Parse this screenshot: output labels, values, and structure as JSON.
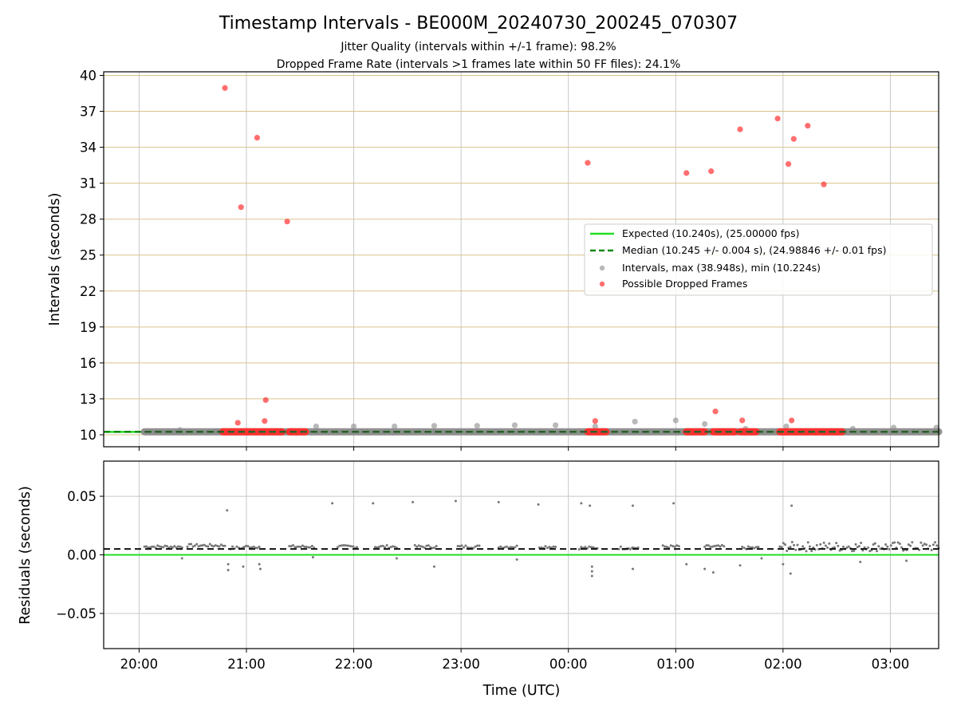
{
  "figure": {
    "title": "Timestamp Intervals - BE000M_20240730_200245_070307",
    "subtitle_1": "Jitter Quality (intervals within +/-1 frame): 98.2%",
    "subtitle_2": "Dropped Frame Rate (intervals >1 frames late within 50 FF files): 24.1%"
  },
  "colors": {
    "expected": "#22dd22",
    "median": "#118811",
    "intervals": "#8a8a8a",
    "dropped": "#ff3030",
    "residual_points": "#777777",
    "y_grid_top": "#d8c38a",
    "x_grid": "#c8c8c8"
  },
  "chart_data": [
    {
      "type": "scatter",
      "ylabel": "Intervals (seconds)",
      "ylim": [
        9.0,
        40.3
      ],
      "yticks": [
        10,
        13,
        16,
        19,
        22,
        25,
        28,
        31,
        34,
        37,
        40
      ],
      "ytick_labels": [
        "10",
        "13",
        "16",
        "19",
        "22",
        "25",
        "28",
        "31",
        "34",
        "37",
        "40"
      ],
      "x_axis_hours": [
        19.67,
        27.45
      ],
      "xticks": [
        20,
        21,
        22,
        23,
        24,
        25,
        26,
        27
      ],
      "grid": true,
      "legend_position": "center-right",
      "legend": [
        "Expected (10.240s), (25.00000 fps)",
        "Median (10.245 +/- 0.004 s), (24.98846 +/- 0.01 fps)",
        "Intervals, max (38.948s), min (10.224s)",
        "Possible Dropped Frames"
      ],
      "expected_interval": 10.24,
      "median_interval": 10.245,
      "interval_band": {
        "x": [
          20.05,
          27.45
        ],
        "y": 10.25
      },
      "intervals_gray": [
        {
          "x": 20.38,
          "y": 10.4
        },
        {
          "x": 20.72,
          "y": 10.3
        },
        {
          "x": 21.65,
          "y": 10.7
        },
        {
          "x": 22.0,
          "y": 10.7
        },
        {
          "x": 22.38,
          "y": 10.7
        },
        {
          "x": 22.75,
          "y": 10.75
        },
        {
          "x": 23.15,
          "y": 10.75
        },
        {
          "x": 23.5,
          "y": 10.8
        },
        {
          "x": 23.88,
          "y": 10.8
        },
        {
          "x": 24.25,
          "y": 10.7
        },
        {
          "x": 24.62,
          "y": 11.1
        },
        {
          "x": 25.0,
          "y": 11.2
        },
        {
          "x": 25.27,
          "y": 10.9
        },
        {
          "x": 25.65,
          "y": 10.5
        },
        {
          "x": 26.03,
          "y": 10.7
        },
        {
          "x": 26.65,
          "y": 10.5
        },
        {
          "x": 27.03,
          "y": 10.6
        },
        {
          "x": 27.43,
          "y": 10.6
        }
      ],
      "dropped_frames": [
        {
          "x": 20.8,
          "y": 38.95
        },
        {
          "x": 20.95,
          "y": 29.0
        },
        {
          "x": 21.1,
          "y": 34.8
        },
        {
          "x": 21.38,
          "y": 27.8
        },
        {
          "x": 21.18,
          "y": 12.9
        },
        {
          "x": 21.17,
          "y": 11.15
        },
        {
          "x": 20.92,
          "y": 11.0
        },
        {
          "x": 24.18,
          "y": 32.7
        },
        {
          "x": 24.25,
          "y": 11.15
        },
        {
          "x": 25.1,
          "y": 31.85
        },
        {
          "x": 25.33,
          "y": 32.0
        },
        {
          "x": 25.6,
          "y": 35.5
        },
        {
          "x": 25.37,
          "y": 11.95
        },
        {
          "x": 25.62,
          "y": 11.2
        },
        {
          "x": 25.95,
          "y": 36.4
        },
        {
          "x": 26.05,
          "y": 32.6
        },
        {
          "x": 26.1,
          "y": 34.7
        },
        {
          "x": 26.23,
          "y": 35.8
        },
        {
          "x": 26.38,
          "y": 30.9
        },
        {
          "x": 26.08,
          "y": 11.2
        }
      ],
      "dropped_bands": [
        {
          "x": [
            20.78,
            21.33
          ],
          "y": 10.25
        },
        {
          "x": [
            21.4,
            21.55
          ],
          "y": 10.25
        },
        {
          "x": [
            24.18,
            24.35
          ],
          "y": 10.25
        },
        {
          "x": [
            25.1,
            25.27
          ],
          "y": 10.25
        },
        {
          "x": [
            25.35,
            25.55
          ],
          "y": 10.25
        },
        {
          "x": [
            25.6,
            25.75
          ],
          "y": 10.25
        },
        {
          "x": [
            25.97,
            26.55
          ],
          "y": 10.25
        }
      ]
    },
    {
      "type": "scatter",
      "ylabel": "Residuals (seconds)",
      "xlabel": "Time (UTC)",
      "ylim": [
        -0.08,
        0.08
      ],
      "yticks": [
        0.05,
        0.0,
        -0.05
      ],
      "ytick_labels": [
        "0.05",
        "0.00",
        "−0.05"
      ],
      "x_axis_hours": [
        19.67,
        27.45
      ],
      "xticks": [
        20,
        21,
        22,
        23,
        24,
        25,
        26,
        27
      ],
      "xtick_labels": [
        "20:00",
        "21:00",
        "22:00",
        "23:00",
        "00:00",
        "01:00",
        "02:00",
        "03:00"
      ],
      "grid": true,
      "expected_residual": 0.0,
      "median_residual": 0.005,
      "residual_clusters": [
        {
          "x": [
            20.05,
            20.4
          ],
          "y": 0.007
        },
        {
          "x": [
            20.45,
            20.8
          ],
          "y": 0.008
        },
        {
          "x": [
            20.85,
            20.97
          ],
          "y": 0.006
        },
        {
          "x": [
            20.98,
            21.12
          ],
          "y": 0.007
        },
        {
          "x": [
            21.4,
            21.63
          ],
          "y": 0.007
        },
        {
          "x": [
            21.85,
            22.03
          ],
          "y": 0.007
        },
        {
          "x": [
            22.2,
            22.4
          ],
          "y": 0.007
        },
        {
          "x": [
            22.57,
            22.77
          ],
          "y": 0.007
        },
        {
          "x": [
            22.97,
            23.17
          ],
          "y": 0.007
        },
        {
          "x": [
            23.35,
            23.52
          ],
          "y": 0.007
        },
        {
          "x": [
            23.73,
            23.88
          ],
          "y": 0.007
        },
        {
          "x": [
            24.1,
            24.27
          ],
          "y": 0.006
        },
        {
          "x": [
            24.47,
            24.65
          ],
          "y": 0.006
        },
        {
          "x": [
            24.88,
            25.03
          ],
          "y": 0.007
        },
        {
          "x": [
            25.27,
            25.45
          ],
          "y": 0.007
        },
        {
          "x": [
            25.62,
            25.77
          ],
          "y": 0.006
        },
        {
          "x": [
            25.97,
            27.45
          ],
          "y": 0.007
        }
      ],
      "residual_outliers": [
        {
          "x": 20.82,
          "y": 0.038
        },
        {
          "x": 21.8,
          "y": 0.044
        },
        {
          "x": 22.18,
          "y": 0.044
        },
        {
          "x": 22.55,
          "y": 0.045
        },
        {
          "x": 22.95,
          "y": 0.046
        },
        {
          "x": 23.35,
          "y": 0.045
        },
        {
          "x": 23.72,
          "y": 0.043
        },
        {
          "x": 24.12,
          "y": 0.044
        },
        {
          "x": 24.2,
          "y": 0.042
        },
        {
          "x": 24.6,
          "y": 0.042
        },
        {
          "x": 24.98,
          "y": 0.044
        },
        {
          "x": 26.08,
          "y": 0.042
        },
        {
          "x": 20.83,
          "y": -0.008
        },
        {
          "x": 20.83,
          "y": -0.013
        },
        {
          "x": 20.97,
          "y": -0.01
        },
        {
          "x": 21.12,
          "y": -0.008
        },
        {
          "x": 21.13,
          "y": -0.012
        },
        {
          "x": 22.75,
          "y": -0.01
        },
        {
          "x": 24.22,
          "y": -0.01
        },
        {
          "x": 24.22,
          "y": -0.014
        },
        {
          "x": 24.22,
          "y": -0.018
        },
        {
          "x": 24.6,
          "y": -0.012
        },
        {
          "x": 25.1,
          "y": -0.008
        },
        {
          "x": 25.27,
          "y": -0.012
        },
        {
          "x": 25.35,
          "y": -0.015
        },
        {
          "x": 25.6,
          "y": -0.009
        },
        {
          "x": 26.07,
          "y": -0.016
        },
        {
          "x": 26.0,
          "y": -0.008
        },
        {
          "x": 26.72,
          "y": -0.006
        },
        {
          "x": 27.15,
          "y": -0.005
        },
        {
          "x": 20.4,
          "y": -0.003
        },
        {
          "x": 21.62,
          "y": -0.002
        },
        {
          "x": 22.4,
          "y": -0.003
        },
        {
          "x": 23.52,
          "y": -0.004
        },
        {
          "x": 25.8,
          "y": -0.003
        }
      ]
    }
  ]
}
